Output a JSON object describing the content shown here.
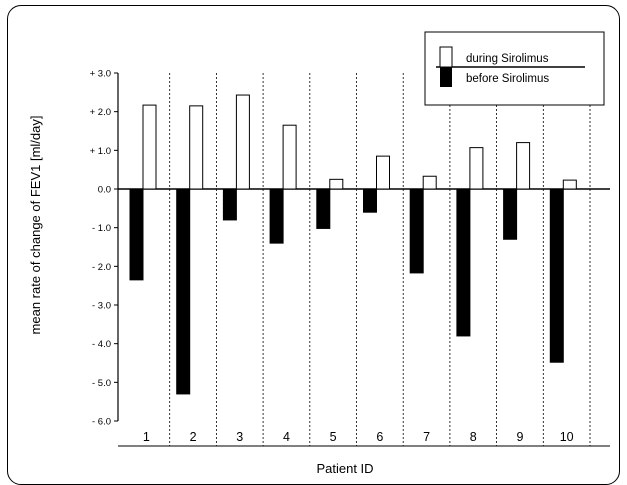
{
  "chart_data": {
    "type": "bar",
    "xlabel": "Patient ID",
    "ylabel": "mean rate of change of FEV1 [ml/day]",
    "categories": [
      "1",
      "2",
      "3",
      "4",
      "5",
      "6",
      "7",
      "8",
      "9",
      "10"
    ],
    "series": [
      {
        "name": "during Sirolimus",
        "values": [
          2.17,
          2.15,
          2.43,
          1.65,
          0.25,
          0.85,
          0.33,
          1.07,
          1.2,
          0.23
        ],
        "color": "#ffffff"
      },
      {
        "name": "before Sirolimus",
        "values": [
          -2.35,
          -5.3,
          -0.8,
          -1.4,
          -1.02,
          -0.6,
          -2.17,
          -3.8,
          -1.3,
          -4.48
        ],
        "color": "#000000"
      }
    ],
    "ylim": [
      -6.0,
      3.0
    ],
    "yticks": [
      3.0,
      2.0,
      1.0,
      0.0,
      -1.0,
      -2.0,
      -3.0,
      -4.0,
      -5.0,
      -6.0
    ],
    "ytick_labels": [
      "+ 3.0",
      "+ 2.0",
      "+ 1.0",
      "0.0",
      "- 1.0",
      "- 2.0",
      "- 3.0",
      "- 4.0",
      "- 5.0",
      "- 6.0"
    ],
    "grid": "vertical dashed separators between patients",
    "legend": "top-right"
  }
}
